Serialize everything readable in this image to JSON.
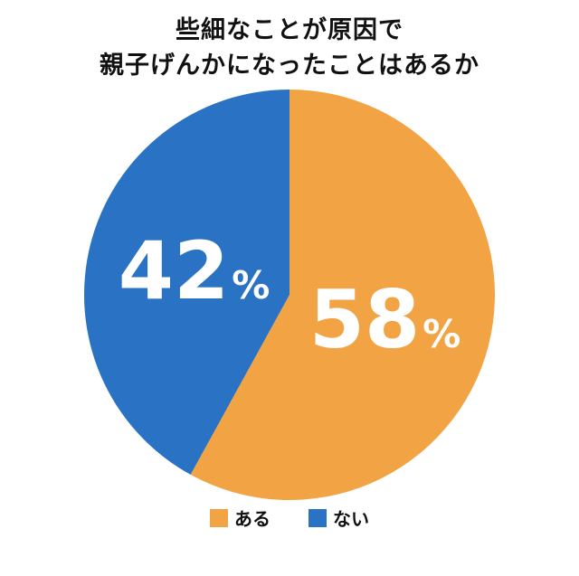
{
  "title": {
    "line1": "些細なことが原因で",
    "line2": "親子げんかになったことはあるか"
  },
  "chart_data": {
    "type": "pie",
    "title": "些細なことが原因で親子げんかになったことはあるか",
    "start_angle_deg": 0,
    "direction": "clockwise",
    "value_suffix": "%",
    "legend_position": "bottom",
    "background": "#FFFFFF",
    "slices": [
      {
        "label": "ある",
        "value": 58,
        "color": "#F2A444",
        "text_color": "#FFFFFF"
      },
      {
        "label": "ない",
        "value": 42,
        "color": "#2A72C3",
        "text_color": "#FFFFFF"
      }
    ]
  }
}
